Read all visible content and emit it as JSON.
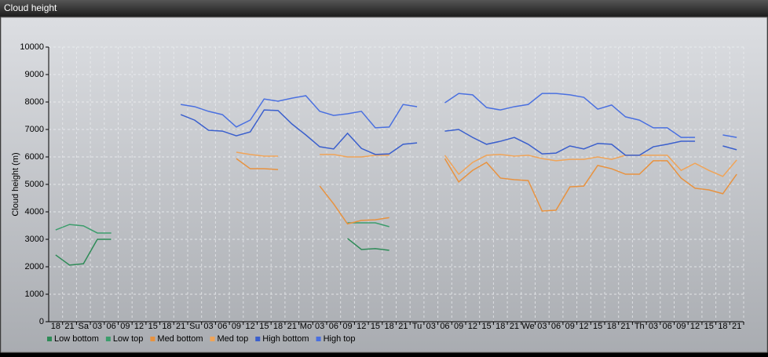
{
  "chart_data": {
    "type": "line",
    "title": "Cloud height",
    "y_label": "Cloud height (m)",
    "categories": [
      "18",
      "21",
      "Sa",
      "03",
      "06",
      "09",
      "12",
      "15",
      "18",
      "21",
      "Su",
      "03",
      "06",
      "09",
      "12",
      "15",
      "18",
      "21",
      "Mo",
      "03",
      "06",
      "09",
      "12",
      "15",
      "18",
      "21",
      "Tu",
      "03",
      "06",
      "09",
      "12",
      "15",
      "18",
      "21",
      "We",
      "03",
      "06",
      "09",
      "12",
      "15",
      "18",
      "21",
      "Th",
      "03",
      "06",
      "09",
      "12",
      "15",
      "18",
      "21"
    ],
    "series": [
      {
        "name": "Low bottom",
        "color": "#2e8b57",
        "values": [
          2430,
          2060,
          2110,
          3000,
          3000,
          null,
          null,
          null,
          null,
          null,
          null,
          null,
          null,
          null,
          null,
          null,
          null,
          null,
          null,
          null,
          null,
          3030,
          2630,
          2660,
          2600,
          null,
          null,
          null,
          null,
          null,
          null,
          null,
          null,
          null,
          null,
          null,
          null,
          null,
          null,
          null,
          null,
          null,
          null,
          null,
          null,
          null,
          null,
          null,
          null,
          null
        ]
      },
      {
        "name": "Low top",
        "color": "#3c9d6c",
        "values": [
          3340,
          3540,
          3490,
          3230,
          3230,
          null,
          null,
          null,
          null,
          null,
          null,
          null,
          null,
          null,
          null,
          null,
          null,
          null,
          null,
          null,
          null,
          3600,
          3600,
          3600,
          3460,
          null,
          null,
          null,
          null,
          null,
          null,
          null,
          null,
          null,
          null,
          null,
          null,
          null,
          null,
          null,
          null,
          null,
          null,
          null,
          null,
          null,
          null,
          null,
          null,
          null
        ]
      },
      {
        "name": "Med bottom",
        "color": "#e8923f",
        "values": [
          null,
          null,
          null,
          null,
          null,
          null,
          null,
          null,
          null,
          null,
          null,
          null,
          null,
          5940,
          5570,
          5570,
          5540,
          null,
          null,
          4940,
          4290,
          3560,
          3690,
          3710,
          3790,
          null,
          null,
          null,
          5940,
          5090,
          5510,
          5800,
          5230,
          5170,
          5140,
          4030,
          4060,
          4910,
          4940,
          5690,
          5570,
          5370,
          5370,
          5860,
          5860,
          5230,
          4860,
          4800,
          4660,
          5370
        ]
      },
      {
        "name": "Med top",
        "color": "#f0a458",
        "values": [
          null,
          null,
          null,
          null,
          null,
          null,
          null,
          null,
          null,
          null,
          null,
          null,
          null,
          6170,
          6090,
          6030,
          6030,
          null,
          null,
          6090,
          6090,
          6000,
          6000,
          6060,
          6060,
          null,
          null,
          null,
          6060,
          5370,
          5800,
          6060,
          6090,
          6030,
          6060,
          5940,
          5860,
          5910,
          5910,
          6000,
          5910,
          6060,
          6060,
          6060,
          6060,
          5510,
          5770,
          5510,
          5290,
          5890
        ]
      },
      {
        "name": "High bottom",
        "color": "#3a5fcd",
        "values": [
          null,
          null,
          null,
          null,
          null,
          null,
          null,
          null,
          null,
          7540,
          7340,
          6970,
          6940,
          6770,
          6910,
          7710,
          7690,
          7200,
          6800,
          6370,
          6290,
          6860,
          6310,
          6090,
          6110,
          6460,
          6510,
          null,
          6940,
          7000,
          6710,
          6460,
          6570,
          6710,
          6460,
          6110,
          6140,
          6400,
          6290,
          6490,
          6460,
          6060,
          6060,
          6370,
          6460,
          6570,
          6570,
          null,
          6400,
          6260
        ]
      },
      {
        "name": "High top",
        "color": "#4a70e0",
        "values": [
          null,
          null,
          null,
          null,
          null,
          null,
          null,
          null,
          null,
          7910,
          7830,
          7660,
          7540,
          7090,
          7340,
          8110,
          8030,
          8140,
          8230,
          7660,
          7510,
          7570,
          7660,
          7060,
          7090,
          7910,
          7830,
          null,
          7970,
          8310,
          8260,
          7800,
          7710,
          7830,
          7910,
          8310,
          8310,
          8260,
          8170,
          7740,
          7890,
          7460,
          7340,
          7060,
          7060,
          6710,
          6710,
          null,
          6800,
          6710
        ]
      }
    ],
    "ylim": [
      0,
      10000
    ],
    "yticks": [
      0,
      1000,
      2000,
      3000,
      4000,
      5000,
      6000,
      7000,
      8000,
      9000,
      10000
    ],
    "grid": true,
    "legend": "bottom-left"
  }
}
